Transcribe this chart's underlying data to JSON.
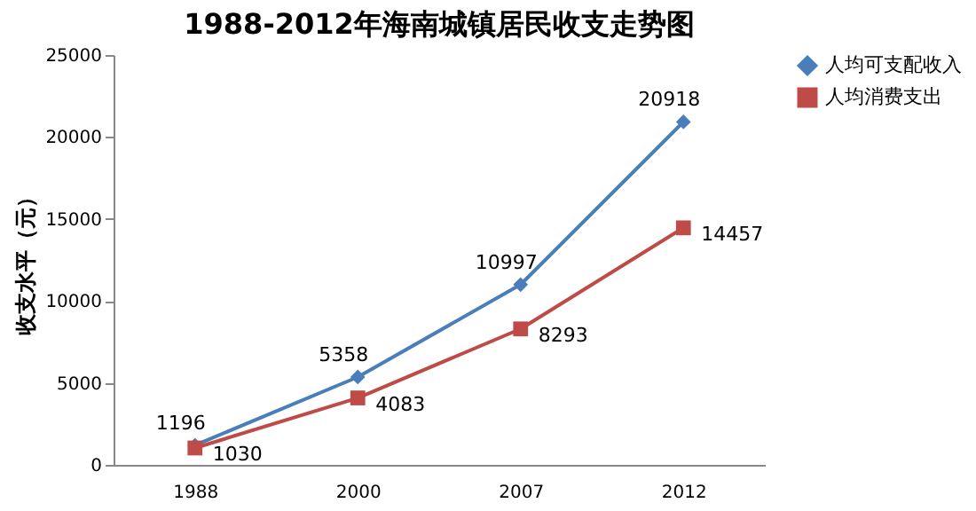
{
  "chart_data": {
    "type": "line",
    "title": "1988-2012年海南城镇居民收支走势图",
    "ylabel": "收支水平（元）",
    "categories": [
      "1988",
      "2000",
      "2007",
      "2012"
    ],
    "series": [
      {
        "name": "人均可支配收入",
        "color": "#4a7ebb",
        "marker": "diamond",
        "values": [
          1196,
          5358,
          10997,
          20918
        ]
      },
      {
        "name": "人均消费支出",
        "color": "#be4b48",
        "marker": "square",
        "values": [
          1030,
          4083,
          8293,
          14457
        ]
      }
    ],
    "ylim": [
      0,
      25000
    ],
    "yticks": [
      0,
      5000,
      10000,
      15000,
      20000,
      25000
    ],
    "grid": false,
    "legend": "right",
    "data_labels": true
  }
}
